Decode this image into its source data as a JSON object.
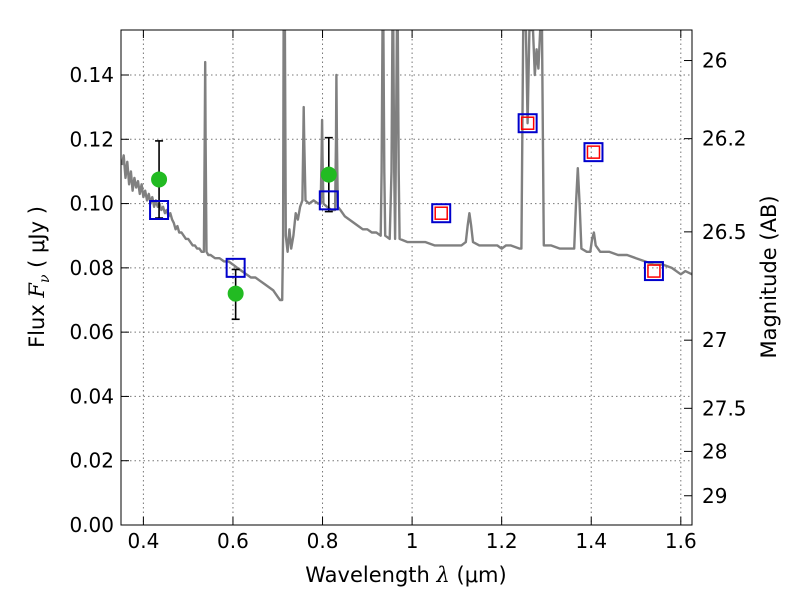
{
  "chart_data": {
    "type": "scatter",
    "title": "",
    "xlabel": {
      "prefix": "Wavelength  ",
      "symbol": "λ",
      "unit": " (μm)"
    },
    "ylabel": {
      "prefix": "Flux  ",
      "symbol": "F",
      "subscript": "ν",
      "unit": "  ( μJy )"
    },
    "y2label": "Magnitude (AB)",
    "xlim": [
      0.35,
      1.625
    ],
    "ylim": [
      0.0,
      0.154
    ],
    "grid": true,
    "x_ticks": [
      {
        "value": 0.4,
        "label": "0.4"
      },
      {
        "value": 0.6,
        "label": "0.6"
      },
      {
        "value": 0.8,
        "label": "0.8"
      },
      {
        "value": 1.0,
        "label": "1"
      },
      {
        "value": 1.2,
        "label": "1.2"
      },
      {
        "value": 1.4,
        "label": "1.4"
      },
      {
        "value": 1.6,
        "label": "1.6"
      }
    ],
    "y_ticks": [
      {
        "value": 0.0,
        "label": "0.00"
      },
      {
        "value": 0.02,
        "label": "0.02"
      },
      {
        "value": 0.04,
        "label": "0.04"
      },
      {
        "value": 0.06,
        "label": "0.06"
      },
      {
        "value": 0.08,
        "label": "0.08"
      },
      {
        "value": 0.1,
        "label": "0.10"
      },
      {
        "value": 0.12,
        "label": "0.12"
      },
      {
        "value": 0.14,
        "label": "0.14"
      }
    ],
    "y2_ticks": [
      {
        "label": "26",
        "flux": 0.1445
      },
      {
        "label": "26.2",
        "flux": 0.1202
      },
      {
        "label": "26.5",
        "flux": 0.0912
      },
      {
        "label": "27",
        "flux": 0.0575
      },
      {
        "label": "27.5",
        "flux": 0.0363
      },
      {
        "label": "28",
        "flux": 0.0229
      },
      {
        "label": "29",
        "flux": 0.0091
      }
    ],
    "series": [
      {
        "kind": "spectrum",
        "color": "#808080",
        "points": [
          [
            0.352,
            0.112
          ],
          [
            0.356,
            0.115
          ],
          [
            0.36,
            0.108
          ],
          [
            0.364,
            0.113
          ],
          [
            0.368,
            0.106
          ],
          [
            0.372,
            0.11
          ],
          [
            0.376,
            0.104
          ],
          [
            0.38,
            0.108
          ],
          [
            0.384,
            0.105
          ],
          [
            0.388,
            0.107
          ],
          [
            0.392,
            0.103
          ],
          [
            0.396,
            0.106
          ],
          [
            0.4,
            0.102
          ],
          [
            0.404,
            0.104
          ],
          [
            0.408,
            0.101
          ],
          [
            0.412,
            0.103
          ],
          [
            0.416,
            0.1
          ],
          [
            0.42,
            0.102
          ],
          [
            0.424,
            0.099
          ],
          [
            0.428,
            0.101
          ],
          [
            0.432,
            0.099
          ],
          [
            0.436,
            0.1
          ],
          [
            0.44,
            0.098
          ],
          [
            0.444,
            0.099
          ],
          [
            0.448,
            0.097
          ],
          [
            0.452,
            0.098
          ],
          [
            0.456,
            0.096
          ],
          [
            0.46,
            0.097
          ],
          [
            0.464,
            0.095
          ],
          [
            0.468,
            0.094
          ],
          [
            0.472,
            0.092
          ],
          [
            0.476,
            0.093
          ],
          [
            0.48,
            0.091
          ],
          [
            0.485,
            0.091
          ],
          [
            0.49,
            0.09
          ],
          [
            0.495,
            0.089
          ],
          [
            0.5,
            0.089
          ],
          [
            0.505,
            0.088
          ],
          [
            0.51,
            0.087
          ],
          [
            0.515,
            0.087
          ],
          [
            0.52,
            0.086
          ],
          [
            0.525,
            0.086
          ],
          [
            0.53,
            0.085
          ],
          [
            0.535,
            0.085
          ],
          [
            0.537,
            0.12
          ],
          [
            0.538,
            0.144
          ],
          [
            0.539,
            0.12
          ],
          [
            0.541,
            0.085
          ],
          [
            0.545,
            0.084
          ],
          [
            0.55,
            0.084
          ],
          [
            0.56,
            0.083
          ],
          [
            0.57,
            0.083
          ],
          [
            0.58,
            0.082
          ],
          [
            0.59,
            0.082
          ],
          [
            0.6,
            0.081
          ],
          [
            0.61,
            0.08
          ],
          [
            0.62,
            0.079
          ],
          [
            0.63,
            0.078
          ],
          [
            0.64,
            0.077
          ],
          [
            0.65,
            0.077
          ],
          [
            0.66,
            0.076
          ],
          [
            0.67,
            0.075
          ],
          [
            0.68,
            0.074
          ],
          [
            0.69,
            0.073
          ],
          [
            0.7,
            0.071
          ],
          [
            0.705,
            0.07
          ],
          [
            0.71,
            0.07
          ],
          [
            0.712,
            0.09
          ],
          [
            0.713,
            0.154
          ],
          [
            0.716,
            0.154
          ],
          [
            0.718,
            0.09
          ],
          [
            0.722,
            0.085
          ],
          [
            0.726,
            0.092
          ],
          [
            0.73,
            0.086
          ],
          [
            0.735,
            0.09
          ],
          [
            0.74,
            0.097
          ],
          [
            0.745,
            0.095
          ],
          [
            0.75,
            0.099
          ],
          [
            0.755,
            0.101
          ],
          [
            0.757,
            0.12
          ],
          [
            0.758,
            0.13
          ],
          [
            0.759,
            0.12
          ],
          [
            0.762,
            0.101
          ],
          [
            0.77,
            0.1
          ],
          [
            0.78,
            0.101
          ],
          [
            0.79,
            0.1
          ],
          [
            0.796,
            0.1
          ],
          [
            0.798,
            0.115
          ],
          [
            0.799,
            0.126
          ],
          [
            0.8,
            0.115
          ],
          [
            0.802,
            0.1
          ],
          [
            0.81,
            0.099
          ],
          [
            0.82,
            0.098
          ],
          [
            0.828,
            0.098
          ],
          [
            0.83,
            0.12
          ],
          [
            0.831,
            0.14
          ],
          [
            0.832,
            0.12
          ],
          [
            0.834,
            0.099
          ],
          [
            0.84,
            0.098
          ],
          [
            0.85,
            0.096
          ],
          [
            0.86,
            0.095
          ],
          [
            0.87,
            0.094
          ],
          [
            0.88,
            0.093
          ],
          [
            0.89,
            0.092
          ],
          [
            0.9,
            0.092
          ],
          [
            0.91,
            0.091
          ],
          [
            0.92,
            0.091
          ],
          [
            0.93,
            0.09
          ],
          [
            0.932,
            0.11
          ],
          [
            0.934,
            0.154
          ],
          [
            0.936,
            0.154
          ],
          [
            0.938,
            0.11
          ],
          [
            0.94,
            0.09
          ],
          [
            0.95,
            0.089
          ],
          [
            0.954,
            0.11
          ],
          [
            0.956,
            0.154
          ],
          [
            0.958,
            0.154
          ],
          [
            0.96,
            0.11
          ],
          [
            0.962,
            0.089
          ],
          [
            0.964,
            0.12
          ],
          [
            0.966,
            0.154
          ],
          [
            0.968,
            0.154
          ],
          [
            0.97,
            0.11
          ],
          [
            0.972,
            0.089
          ],
          [
            0.99,
            0.088
          ],
          [
            1.01,
            0.088
          ],
          [
            1.03,
            0.088
          ],
          [
            1.05,
            0.087
          ],
          [
            1.07,
            0.087
          ],
          [
            1.09,
            0.087
          ],
          [
            1.11,
            0.087
          ],
          [
            1.12,
            0.088
          ],
          [
            1.124,
            0.093
          ],
          [
            1.128,
            0.097
          ],
          [
            1.132,
            0.093
          ],
          [
            1.136,
            0.088
          ],
          [
            1.15,
            0.087
          ],
          [
            1.17,
            0.087
          ],
          [
            1.19,
            0.087
          ],
          [
            1.2,
            0.086
          ],
          [
            1.21,
            0.087
          ],
          [
            1.22,
            0.087
          ],
          [
            1.24,
            0.086
          ],
          [
            1.244,
            0.086
          ],
          [
            1.246,
            0.12
          ],
          [
            1.248,
            0.154
          ],
          [
            1.254,
            0.154
          ],
          [
            1.258,
            0.125
          ],
          [
            1.262,
            0.154
          ],
          [
            1.27,
            0.154
          ],
          [
            1.274,
            0.14
          ],
          [
            1.278,
            0.148
          ],
          [
            1.282,
            0.142
          ],
          [
            1.286,
            0.154
          ],
          [
            1.29,
            0.154
          ],
          [
            1.292,
            0.12
          ],
          [
            1.294,
            0.087
          ],
          [
            1.31,
            0.087
          ],
          [
            1.33,
            0.086
          ],
          [
            1.35,
            0.086
          ],
          [
            1.362,
            0.086
          ],
          [
            1.366,
            0.1
          ],
          [
            1.37,
            0.111
          ],
          [
            1.374,
            0.1
          ],
          [
            1.378,
            0.086
          ],
          [
            1.39,
            0.085
          ],
          [
            1.398,
            0.085
          ],
          [
            1.402,
            0.089
          ],
          [
            1.406,
            0.091
          ],
          [
            1.41,
            0.087
          ],
          [
            1.42,
            0.085
          ],
          [
            1.44,
            0.085
          ],
          [
            1.46,
            0.084
          ],
          [
            1.48,
            0.084
          ],
          [
            1.5,
            0.083
          ],
          [
            1.52,
            0.082
          ],
          [
            1.54,
            0.081
          ],
          [
            1.56,
            0.081
          ],
          [
            1.58,
            0.08
          ],
          [
            1.6,
            0.078
          ],
          [
            1.61,
            0.079
          ],
          [
            1.625,
            0.078
          ]
        ]
      },
      {
        "kind": "observed",
        "marker": "circle",
        "color": "#22bb22",
        "points": [
          {
            "x": 0.435,
            "y": 0.1075,
            "yerr_low": 0.0955,
            "yerr_high": 0.1195
          },
          {
            "x": 0.606,
            "y": 0.072,
            "yerr_low": 0.064,
            "yerr_high": 0.0795
          },
          {
            "x": 0.814,
            "y": 0.109,
            "yerr_low": 0.0975,
            "yerr_high": 0.1205
          }
        ]
      },
      {
        "kind": "model-photometry",
        "marker": "square",
        "color": "#0000cc",
        "points": [
          {
            "x": 0.435,
            "y": 0.098
          },
          {
            "x": 0.606,
            "y": 0.08
          },
          {
            "x": 0.814,
            "y": 0.101
          },
          {
            "x": 1.065,
            "y": 0.097
          },
          {
            "x": 1.258,
            "y": 0.125
          },
          {
            "x": 1.405,
            "y": 0.116
          },
          {
            "x": 1.54,
            "y": 0.079
          }
        ]
      },
      {
        "kind": "model-photometry-inner",
        "marker": "square",
        "color": "#ff0000",
        "points": [
          {
            "x": 1.065,
            "y": 0.097
          },
          {
            "x": 1.258,
            "y": 0.125
          },
          {
            "x": 1.405,
            "y": 0.116
          },
          {
            "x": 1.54,
            "y": 0.079
          }
        ]
      }
    ]
  }
}
